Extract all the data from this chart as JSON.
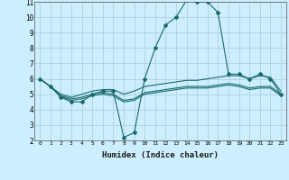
{
  "xlabel": "Humidex (Indice chaleur)",
  "background_color": "#cceeff",
  "grid_color": "#aacccc",
  "line_color": "#1a6b6b",
  "xlim": [
    -0.5,
    23.5
  ],
  "ylim": [
    2,
    11
  ],
  "xticks": [
    0,
    1,
    2,
    3,
    4,
    5,
    6,
    7,
    8,
    9,
    10,
    11,
    12,
    13,
    14,
    15,
    16,
    17,
    18,
    19,
    20,
    21,
    22,
    23
  ],
  "yticks": [
    2,
    3,
    4,
    5,
    6,
    7,
    8,
    9,
    10,
    11
  ],
  "lines": [
    {
      "x": [
        0,
        1,
        2,
        3,
        4,
        5,
        6,
        7,
        8,
        9,
        10,
        11,
        12,
        13,
        14,
        15,
        16,
        17,
        18,
        19,
        20,
        21,
        22,
        23
      ],
      "y": [
        6.0,
        5.5,
        4.8,
        4.5,
        4.5,
        5.0,
        5.2,
        5.2,
        2.2,
        2.5,
        6.0,
        8.0,
        9.5,
        10.0,
        11.1,
        11.0,
        11.0,
        10.3,
        6.3,
        6.3,
        6.0,
        6.3,
        6.0,
        5.0
      ],
      "marker": "D",
      "markersize": 2.0
    },
    {
      "x": [
        0,
        1,
        2,
        3,
        4,
        5,
        6,
        7,
        8,
        9,
        10,
        11,
        12,
        13,
        14,
        15,
        16,
        17,
        18,
        19,
        20,
        21,
        22,
        23
      ],
      "y": [
        6.0,
        5.5,
        5.0,
        4.8,
        5.0,
        5.2,
        5.3,
        5.3,
        5.0,
        5.2,
        5.5,
        5.6,
        5.7,
        5.8,
        5.9,
        5.9,
        6.0,
        6.1,
        6.2,
        6.2,
        6.0,
        6.2,
        6.1,
        5.2
      ],
      "marker": null,
      "markersize": 0
    },
    {
      "x": [
        0,
        1,
        2,
        3,
        4,
        5,
        6,
        7,
        8,
        9,
        10,
        11,
        12,
        13,
        14,
        15,
        16,
        17,
        18,
        19,
        20,
        21,
        22,
        23
      ],
      "y": [
        6.0,
        5.5,
        4.9,
        4.7,
        4.8,
        5.0,
        5.1,
        5.0,
        4.6,
        4.7,
        5.1,
        5.2,
        5.3,
        5.4,
        5.5,
        5.5,
        5.5,
        5.6,
        5.7,
        5.6,
        5.4,
        5.5,
        5.5,
        5.0
      ],
      "marker": null,
      "markersize": 0
    },
    {
      "x": [
        0,
        1,
        2,
        3,
        4,
        5,
        6,
        7,
        8,
        9,
        10,
        11,
        12,
        13,
        14,
        15,
        16,
        17,
        18,
        19,
        20,
        21,
        22,
        23
      ],
      "y": [
        6.0,
        5.5,
        4.85,
        4.6,
        4.7,
        4.9,
        5.0,
        4.9,
        4.5,
        4.6,
        5.0,
        5.1,
        5.2,
        5.3,
        5.4,
        5.4,
        5.4,
        5.5,
        5.6,
        5.5,
        5.3,
        5.4,
        5.4,
        4.9
      ],
      "marker": null,
      "markersize": 0
    }
  ]
}
